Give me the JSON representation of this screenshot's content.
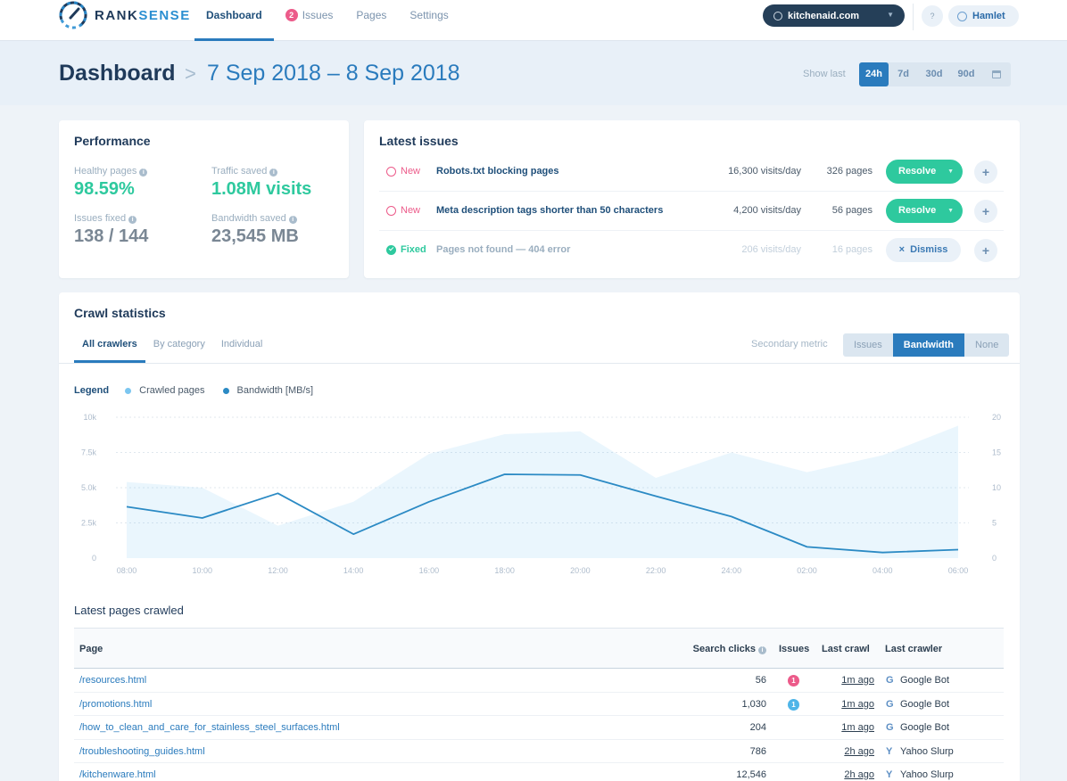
{
  "app": {
    "logo_text_a": "RANK",
    "logo_text_b": "SENSE"
  },
  "nav": {
    "items": [
      {
        "label": "Dashboard",
        "active": true
      },
      {
        "label": "Issues",
        "badge": "2"
      },
      {
        "label": "Pages"
      },
      {
        "label": "Settings"
      }
    ],
    "site": "kitchenaid.com",
    "help": "?",
    "user": "Hamlet"
  },
  "header": {
    "title": "Dashboard",
    "chevron": ">",
    "date_range": "7 Sep 2018 – 8 Sep 2018",
    "show_last_label": "Show last",
    "ranges": [
      "24h",
      "7d",
      "30d",
      "90d"
    ],
    "active_range": "24h"
  },
  "performance": {
    "title": "Performance",
    "healthy_label": "Healthy pages",
    "healthy_value": "98.59%",
    "traffic_label": "Traffic saved",
    "traffic_value": "1.08M visits",
    "issues_fixed_label": "Issues fixed",
    "issues_fixed_value": "138 / 144",
    "bandwidth_label": "Bandwidth saved",
    "bandwidth_value": "23,545 MB"
  },
  "latest_issues": {
    "title": "Latest issues",
    "rows": [
      {
        "status": "New",
        "title": "Robots.txt blocking pages",
        "visits": "16,300 visits/day",
        "pages": "326 pages",
        "action": "Resolve"
      },
      {
        "status": "New",
        "title": "Meta description tags shorter than 50 characters",
        "visits": "4,200 visits/day",
        "pages": "56 pages",
        "action": "Resolve"
      },
      {
        "status": "Fixed",
        "title": "Pages not found — 404 error",
        "visits": "206 visits/day",
        "pages": "16 pages",
        "action": "Dismiss"
      }
    ],
    "dismiss_icon": "×",
    "plus": "+"
  },
  "crawl": {
    "title": "Crawl statistics",
    "tabs": [
      "All crawlers",
      "By category",
      "Individual"
    ],
    "secondary_label": "Secondary metric",
    "secondary_options": [
      "Issues",
      "Bandwidth",
      "None"
    ],
    "secondary_active": "Bandwidth",
    "legend_title": "Legend",
    "legend_items": [
      "Crawled pages",
      "Bandwidth [MB/s]"
    ]
  },
  "chart_data": {
    "type": "area",
    "x": [
      "08:00",
      "10:00",
      "12:00",
      "14:00",
      "16:00",
      "18:00",
      "20:00",
      "22:00",
      "24:00",
      "02:00",
      "04:00",
      "06:00"
    ],
    "series": [
      {
        "name": "Crawled pages",
        "axis": "left",
        "kind": "area",
        "color": "#5fb8ec",
        "values": [
          5400,
          5000,
          2300,
          4000,
          7400,
          8800,
          9000,
          5700,
          7500,
          6100,
          7300,
          9400
        ]
      },
      {
        "name": "Bandwidth [MB/s]",
        "axis": "right",
        "kind": "line",
        "color": "#2b8ac4",
        "values": [
          7.3,
          5.7,
          9.2,
          3.4,
          8.0,
          11.9,
          11.8,
          8.8,
          5.9,
          1.6,
          0.8,
          1.2
        ]
      }
    ],
    "left_axis": {
      "ticks": [
        "0",
        "2.5k",
        "5.0k",
        "7.5k",
        "10k"
      ],
      "range": [
        0,
        10000
      ]
    },
    "right_axis": {
      "ticks": [
        "0",
        "5",
        "10",
        "15",
        "20"
      ],
      "range": [
        0,
        20
      ]
    }
  },
  "latest_pages": {
    "title": "Latest pages crawled",
    "headers": {
      "page": "Page",
      "clicks": "Search clicks",
      "issues": "Issues",
      "last_crawl": "Last crawl",
      "last_crawler": "Last crawler"
    },
    "rows": [
      {
        "page": "/resources.html",
        "clicks": "56",
        "issues": "1",
        "issue_color": "#ec5b8a",
        "last_crawl": "1m ago",
        "crawler_icon": "G",
        "crawler": "Google Bot"
      },
      {
        "page": "/promotions.html",
        "clicks": "1,030",
        "issues": "1",
        "issue_color": "#4fb5e8",
        "last_crawl": "1m ago",
        "crawler_icon": "G",
        "crawler": "Google Bot"
      },
      {
        "page": "/how_to_clean_and_care_for_stainless_steel_surfaces.html",
        "clicks": "204",
        "issues": "",
        "issue_color": "",
        "last_crawl": "1m ago",
        "crawler_icon": "G",
        "crawler": "Google Bot"
      },
      {
        "page": "/troubleshooting_guides.html",
        "clicks": "786",
        "issues": "",
        "issue_color": "",
        "last_crawl": "2h ago",
        "crawler_icon": "Y",
        "crawler": "Yahoo Slurp"
      },
      {
        "page": "/kitchenware.html",
        "clicks": "12,546",
        "issues": "",
        "issue_color": "",
        "last_crawl": "2h ago",
        "crawler_icon": "Y",
        "crawler": "Yahoo Slurp"
      }
    ]
  }
}
